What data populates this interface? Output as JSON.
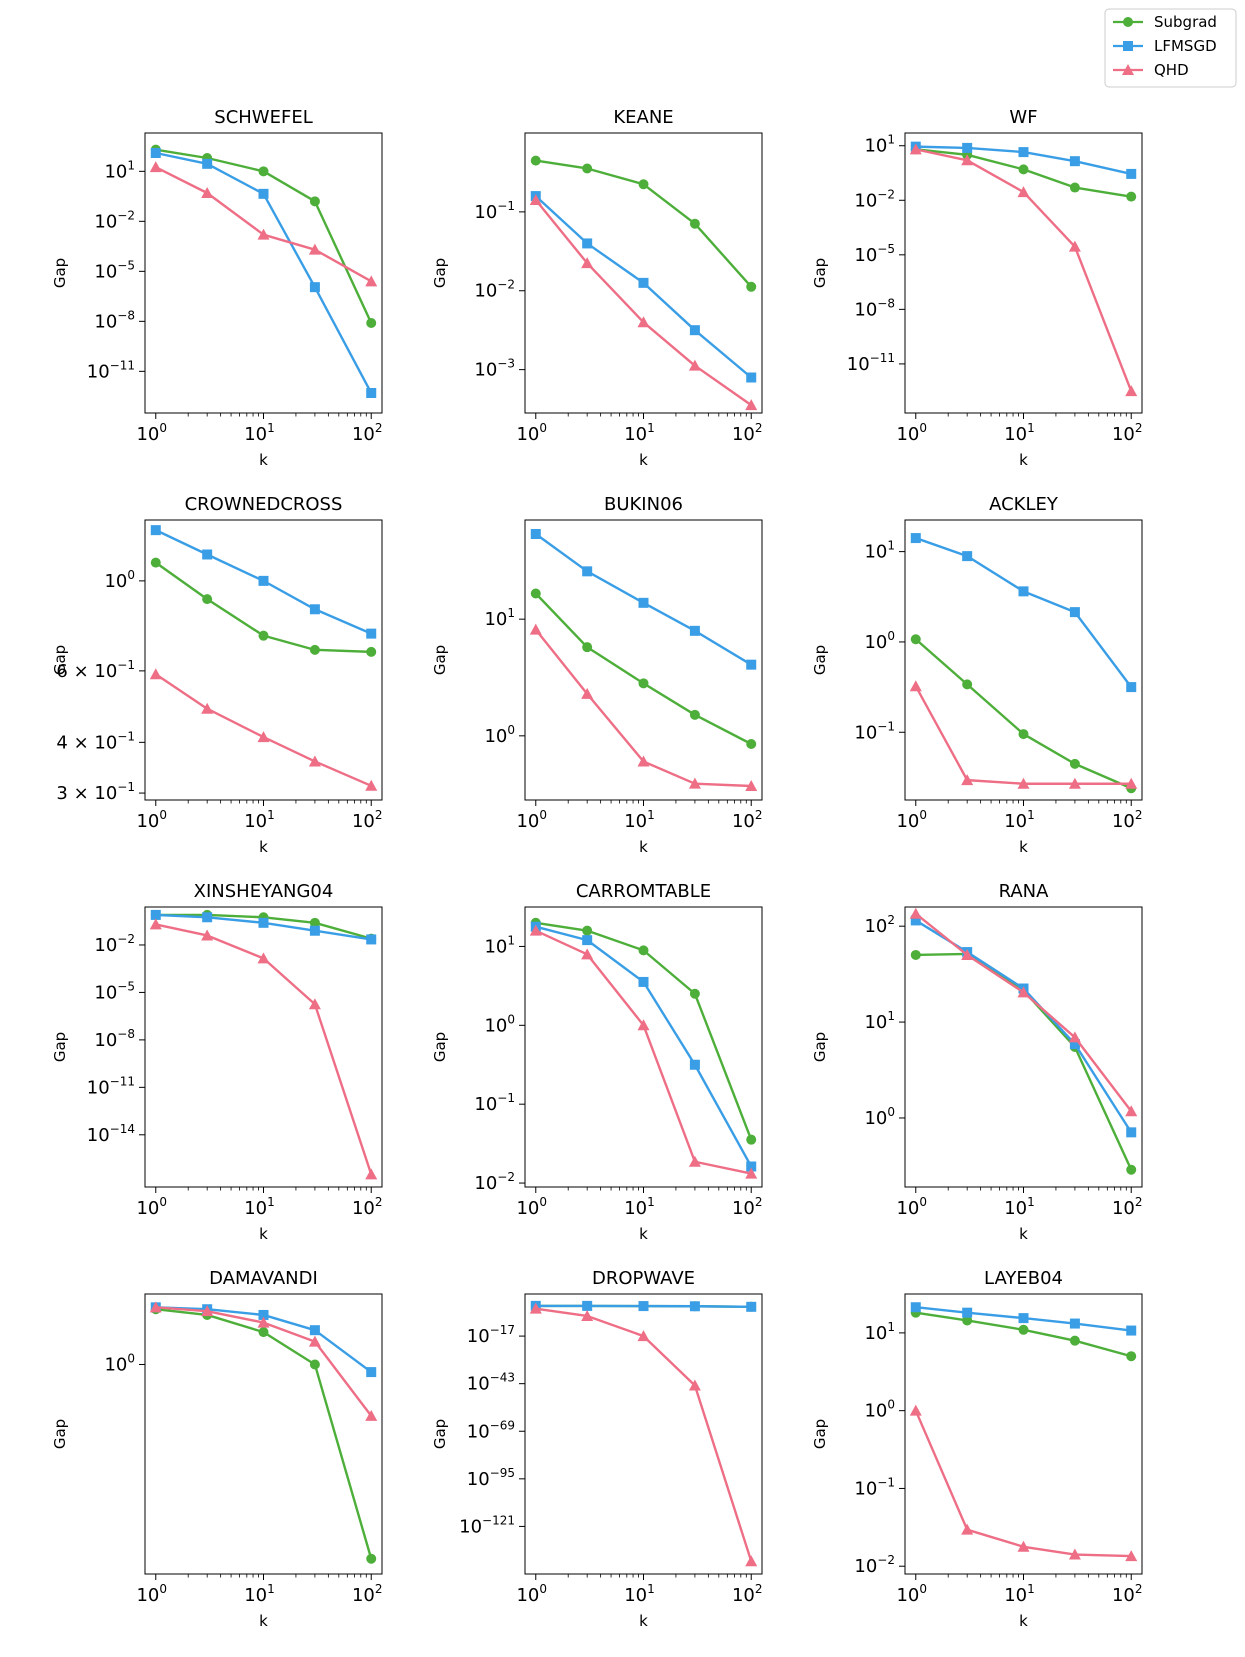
{
  "legend": {
    "entries": [
      {
        "name": "Subgrad",
        "color": "#4daf3a",
        "marker": "circle"
      },
      {
        "name": "LFMSGD",
        "color": "#3a9ee6",
        "marker": "square"
      },
      {
        "name": "QHD",
        "color": "#ee6e86",
        "marker": "triangle"
      }
    ]
  },
  "chart_data": [
    {
      "type": "line",
      "title": "SCHWEFEL",
      "xlabel": "k",
      "ylabel": "Gap",
      "x": [
        1,
        3,
        10,
        30,
        100
      ],
      "xlim_log": [
        -0.1,
        2.1
      ],
      "ylim_log": [
        -13.5,
        3.3
      ],
      "y_ticks": [
        {
          "exp": 1,
          "label": "10",
          "sup": "1"
        },
        {
          "exp": -2,
          "label": "10",
          "sup": "−2"
        },
        {
          "exp": -5,
          "label": "10",
          "sup": "−5"
        },
        {
          "exp": -8,
          "label": "10",
          "sup": "−8"
        },
        {
          "exp": -11,
          "label": "10",
          "sup": "−11"
        }
      ],
      "series": [
        {
          "name": "Subgrad",
          "log_values": [
            2.3,
            1.8,
            1.0,
            -0.8,
            -8.1
          ]
        },
        {
          "name": "LFMSGD",
          "log_values": [
            2.1,
            1.45,
            -0.35,
            -5.95,
            -12.3
          ]
        },
        {
          "name": "QHD",
          "log_values": [
            1.25,
            -0.3,
            -2.8,
            -3.7,
            -5.6
          ]
        }
      ]
    },
    {
      "type": "line",
      "title": "KEANE",
      "xlabel": "k",
      "ylabel": "Gap",
      "x": [
        1,
        3,
        10,
        30,
        100
      ],
      "xlim_log": [
        -0.1,
        2.1
      ],
      "ylim_log": [
        -3.55,
        0.0
      ],
      "y_ticks": [
        {
          "exp": -1,
          "label": "10",
          "sup": "−1"
        },
        {
          "exp": -2,
          "label": "10",
          "sup": "−2"
        },
        {
          "exp": -3,
          "label": "10",
          "sup": "−3"
        }
      ],
      "series": [
        {
          "name": "Subgrad",
          "log_values": [
            -0.35,
            -0.45,
            -0.65,
            -1.15,
            -1.95
          ]
        },
        {
          "name": "LFMSGD",
          "log_values": [
            -0.8,
            -1.4,
            -1.9,
            -2.5,
            -3.1
          ]
        },
        {
          "name": "QHD",
          "log_values": [
            -0.85,
            -1.65,
            -2.4,
            -2.95,
            -3.45
          ]
        }
      ]
    },
    {
      "type": "line",
      "title": "WF",
      "xlabel": "k",
      "ylabel": "Gap",
      "x": [
        1,
        3,
        10,
        30,
        100
      ],
      "xlim_log": [
        -0.1,
        2.1
      ],
      "ylim_log": [
        -13.7,
        1.7
      ],
      "y_ticks": [
        {
          "exp": 1,
          "label": "10",
          "sup": "1"
        },
        {
          "exp": -2,
          "label": "10",
          "sup": "−2"
        },
        {
          "exp": -5,
          "label": "10",
          "sup": "−5"
        },
        {
          "exp": -8,
          "label": "10",
          "sup": "−8"
        },
        {
          "exp": -11,
          "label": "10",
          "sup": "−11"
        }
      ],
      "series": [
        {
          "name": "Subgrad",
          "log_values": [
            0.8,
            0.5,
            -0.3,
            -1.3,
            -1.8
          ]
        },
        {
          "name": "LFMSGD",
          "log_values": [
            0.95,
            0.88,
            0.65,
            0.15,
            -0.55
          ]
        },
        {
          "name": "QHD",
          "log_values": [
            0.8,
            0.2,
            -1.55,
            -4.55,
            -12.5
          ]
        }
      ]
    },
    {
      "type": "line",
      "title": "CROWNEDCROSS",
      "xlabel": "k",
      "ylabel": "Gap",
      "x": [
        1,
        3,
        10,
        30,
        100
      ],
      "xlim_log": [
        -0.1,
        2.1
      ],
      "ylim_log": [
        -0.54,
        0.15
      ],
      "y_ticks": [
        {
          "exp": 0,
          "label": "10",
          "sup": "0"
        },
        {
          "exp": -0.2218,
          "label": "6 × 10",
          "sup": "−1"
        },
        {
          "exp": -0.3979,
          "label": "4 × 10",
          "sup": "−1"
        },
        {
          "exp": -0.5229,
          "label": "3 × 10",
          "sup": "−1"
        }
      ],
      "series": [
        {
          "name": "Subgrad",
          "log_values": [
            0.045,
            -0.045,
            -0.135,
            -0.17,
            -0.175
          ]
        },
        {
          "name": "LFMSGD",
          "log_values": [
            0.125,
            0.065,
            0.0,
            -0.07,
            -0.13
          ]
        },
        {
          "name": "QHD",
          "log_values": [
            -0.23,
            -0.315,
            -0.385,
            -0.445,
            -0.505
          ]
        }
      ]
    },
    {
      "type": "line",
      "title": "BUKIN06",
      "xlabel": "k",
      "ylabel": "Gap",
      "x": [
        1,
        3,
        10,
        30,
        100
      ],
      "xlim_log": [
        -0.1,
        2.1
      ],
      "ylim_log": [
        -0.55,
        1.85
      ],
      "y_ticks": [
        {
          "exp": 1,
          "label": "10",
          "sup": "1"
        },
        {
          "exp": 0,
          "label": "10",
          "sup": "0"
        }
      ],
      "series": [
        {
          "name": "Subgrad",
          "log_values": [
            1.22,
            0.76,
            0.45,
            0.18,
            -0.07
          ]
        },
        {
          "name": "LFMSGD",
          "log_values": [
            1.73,
            1.41,
            1.14,
            0.9,
            0.61
          ]
        },
        {
          "name": "QHD",
          "log_values": [
            0.91,
            0.36,
            -0.22,
            -0.41,
            -0.43
          ]
        }
      ]
    },
    {
      "type": "line",
      "title": "ACKLEY",
      "xlabel": "k",
      "ylabel": "Gap",
      "x": [
        1,
        3,
        10,
        30,
        100
      ],
      "xlim_log": [
        -0.1,
        2.1
      ],
      "ylim_log": [
        -1.75,
        1.35
      ],
      "y_ticks": [
        {
          "exp": 1,
          "label": "10",
          "sup": "1"
        },
        {
          "exp": 0,
          "label": "10",
          "sup": "0"
        },
        {
          "exp": -1,
          "label": "10",
          "sup": "−1"
        }
      ],
      "series": [
        {
          "name": "Subgrad",
          "log_values": [
            0.03,
            -0.47,
            -1.02,
            -1.35,
            -1.62
          ]
        },
        {
          "name": "LFMSGD",
          "log_values": [
            1.15,
            0.95,
            0.56,
            0.33,
            -0.5
          ]
        },
        {
          "name": "QHD",
          "log_values": [
            -0.49,
            -1.53,
            -1.57,
            -1.57,
            -1.57
          ]
        }
      ]
    },
    {
      "type": "line",
      "title": "XINSHEYANG04",
      "xlabel": "k",
      "ylabel": "Gap",
      "x": [
        1,
        3,
        10,
        30,
        100
      ],
      "xlim_log": [
        -0.1,
        2.1
      ],
      "ylim_log": [
        -17.3,
        0.4
      ],
      "y_ticks": [
        {
          "exp": -2,
          "label": "10",
          "sup": "−2"
        },
        {
          "exp": -5,
          "label": "10",
          "sup": "−5"
        },
        {
          "exp": -8,
          "label": "10",
          "sup": "−8"
        },
        {
          "exp": -11,
          "label": "10",
          "sup": "−11"
        },
        {
          "exp": -14,
          "label": "10",
          "sup": "−14"
        }
      ],
      "series": [
        {
          "name": "Subgrad",
          "log_values": [
            -0.1,
            -0.1,
            -0.25,
            -0.6,
            -1.6
          ]
        },
        {
          "name": "LFMSGD",
          "log_values": [
            -0.1,
            -0.25,
            -0.6,
            -1.1,
            -1.65
          ]
        },
        {
          "name": "QHD",
          "log_values": [
            -0.7,
            -1.4,
            -2.85,
            -5.75,
            -16.5
          ]
        }
      ]
    },
    {
      "type": "line",
      "title": "CARROMTABLE",
      "xlabel": "k",
      "ylabel": "Gap",
      "x": [
        1,
        3,
        10,
        30,
        100
      ],
      "xlim_log": [
        -0.1,
        2.1
      ],
      "ylim_log": [
        -2.05,
        1.5
      ],
      "y_ticks": [
        {
          "exp": 1,
          "label": "10",
          "sup": "1"
        },
        {
          "exp": 0,
          "label": "10",
          "sup": "0"
        },
        {
          "exp": -1,
          "label": "10",
          "sup": "−1"
        },
        {
          "exp": -2,
          "label": "10",
          "sup": "−2"
        }
      ],
      "series": [
        {
          "name": "Subgrad",
          "log_values": [
            1.3,
            1.2,
            0.95,
            0.4,
            -1.45
          ]
        },
        {
          "name": "LFMSGD",
          "log_values": [
            1.25,
            1.08,
            0.55,
            -0.5,
            -1.79
          ]
        },
        {
          "name": "QHD",
          "log_values": [
            1.2,
            0.9,
            0.0,
            -1.73,
            -1.88
          ]
        }
      ]
    },
    {
      "type": "line",
      "title": "RANA",
      "xlabel": "k",
      "ylabel": "Gap",
      "x": [
        1,
        3,
        10,
        30,
        100
      ],
      "xlim_log": [
        -0.1,
        2.1
      ],
      "ylim_log": [
        -0.72,
        2.2
      ],
      "y_ticks": [
        {
          "exp": 2,
          "label": "10",
          "sup": "2"
        },
        {
          "exp": 1,
          "label": "10",
          "sup": "1"
        },
        {
          "exp": 0,
          "label": "10",
          "sup": "0"
        }
      ],
      "series": [
        {
          "name": "Subgrad",
          "log_values": [
            1.7,
            1.71,
            1.33,
            0.74,
            -0.54
          ]
        },
        {
          "name": "LFMSGD",
          "log_values": [
            2.06,
            1.73,
            1.35,
            0.77,
            -0.15
          ]
        },
        {
          "name": "QHD",
          "log_values": [
            2.13,
            1.7,
            1.31,
            0.84,
            0.07
          ]
        }
      ]
    },
    {
      "type": "line",
      "title": "DAMAVANDI",
      "xlabel": "k",
      "ylabel": "Gap",
      "x": [
        1,
        3,
        10,
        30,
        100
      ],
      "xlim_log": [
        -0.1,
        2.1
      ],
      "ylim_log": [
        -1.1,
        0.37
      ],
      "y_ticks": [
        {
          "exp": 0,
          "label": "10",
          "sup": "0"
        }
      ],
      "series": [
        {
          "name": "Subgrad",
          "log_values": [
            0.29,
            0.26,
            0.17,
            0.0,
            -1.02
          ]
        },
        {
          "name": "LFMSGD",
          "log_values": [
            0.3,
            0.29,
            0.26,
            0.18,
            -0.04
          ]
        },
        {
          "name": "QHD",
          "log_values": [
            0.3,
            0.28,
            0.22,
            0.12,
            -0.27
          ]
        }
      ]
    },
    {
      "type": "line",
      "title": "DROPWAVE",
      "xlabel": "k",
      "ylabel": "Gap",
      "x": [
        1,
        3,
        10,
        30,
        100
      ],
      "xlim_log": [
        -0.1,
        2.1
      ],
      "ylim_log": [
        -147,
        6
      ],
      "y_ticks": [
        {
          "exp": -17,
          "label": "10",
          "sup": "−17"
        },
        {
          "exp": -43,
          "label": "10",
          "sup": "−43"
        },
        {
          "exp": -69,
          "label": "10",
          "sup": "−69"
        },
        {
          "exp": -95,
          "label": "10",
          "sup": "−95"
        },
        {
          "exp": -121,
          "label": "10",
          "sup": "−121"
        }
      ],
      "series": [
        {
          "name": "Subgrad",
          "log_values": [
            -0.5,
            -0.5,
            -0.6,
            -0.7,
            -1.0
          ]
        },
        {
          "name": "LFMSGD",
          "log_values": [
            -0.5,
            -0.5,
            -0.6,
            -0.7,
            -1.0
          ]
        },
        {
          "name": "QHD",
          "log_values": [
            -2,
            -6,
            -17,
            -44,
            -140
          ]
        }
      ]
    },
    {
      "type": "line",
      "title": "LAYEB04",
      "xlabel": "k",
      "ylabel": "Gap",
      "x": [
        1,
        3,
        10,
        30,
        100
      ],
      "xlim_log": [
        -0.1,
        2.1
      ],
      "ylim_log": [
        -2.1,
        1.5
      ],
      "y_ticks": [
        {
          "exp": 1,
          "label": "10",
          "sup": "1"
        },
        {
          "exp": 0,
          "label": "10",
          "sup": "0"
        },
        {
          "exp": -1,
          "label": "10",
          "sup": "−1"
        },
        {
          "exp": -2,
          "label": "10",
          "sup": "−2"
        }
      ],
      "series": [
        {
          "name": "Subgrad",
          "log_values": [
            1.26,
            1.16,
            1.04,
            0.9,
            0.7
          ]
        },
        {
          "name": "LFMSGD",
          "log_values": [
            1.33,
            1.26,
            1.19,
            1.12,
            1.03
          ]
        },
        {
          "name": "QHD",
          "log_values": [
            0.0,
            -1.53,
            -1.75,
            -1.85,
            -1.87
          ]
        }
      ]
    }
  ]
}
